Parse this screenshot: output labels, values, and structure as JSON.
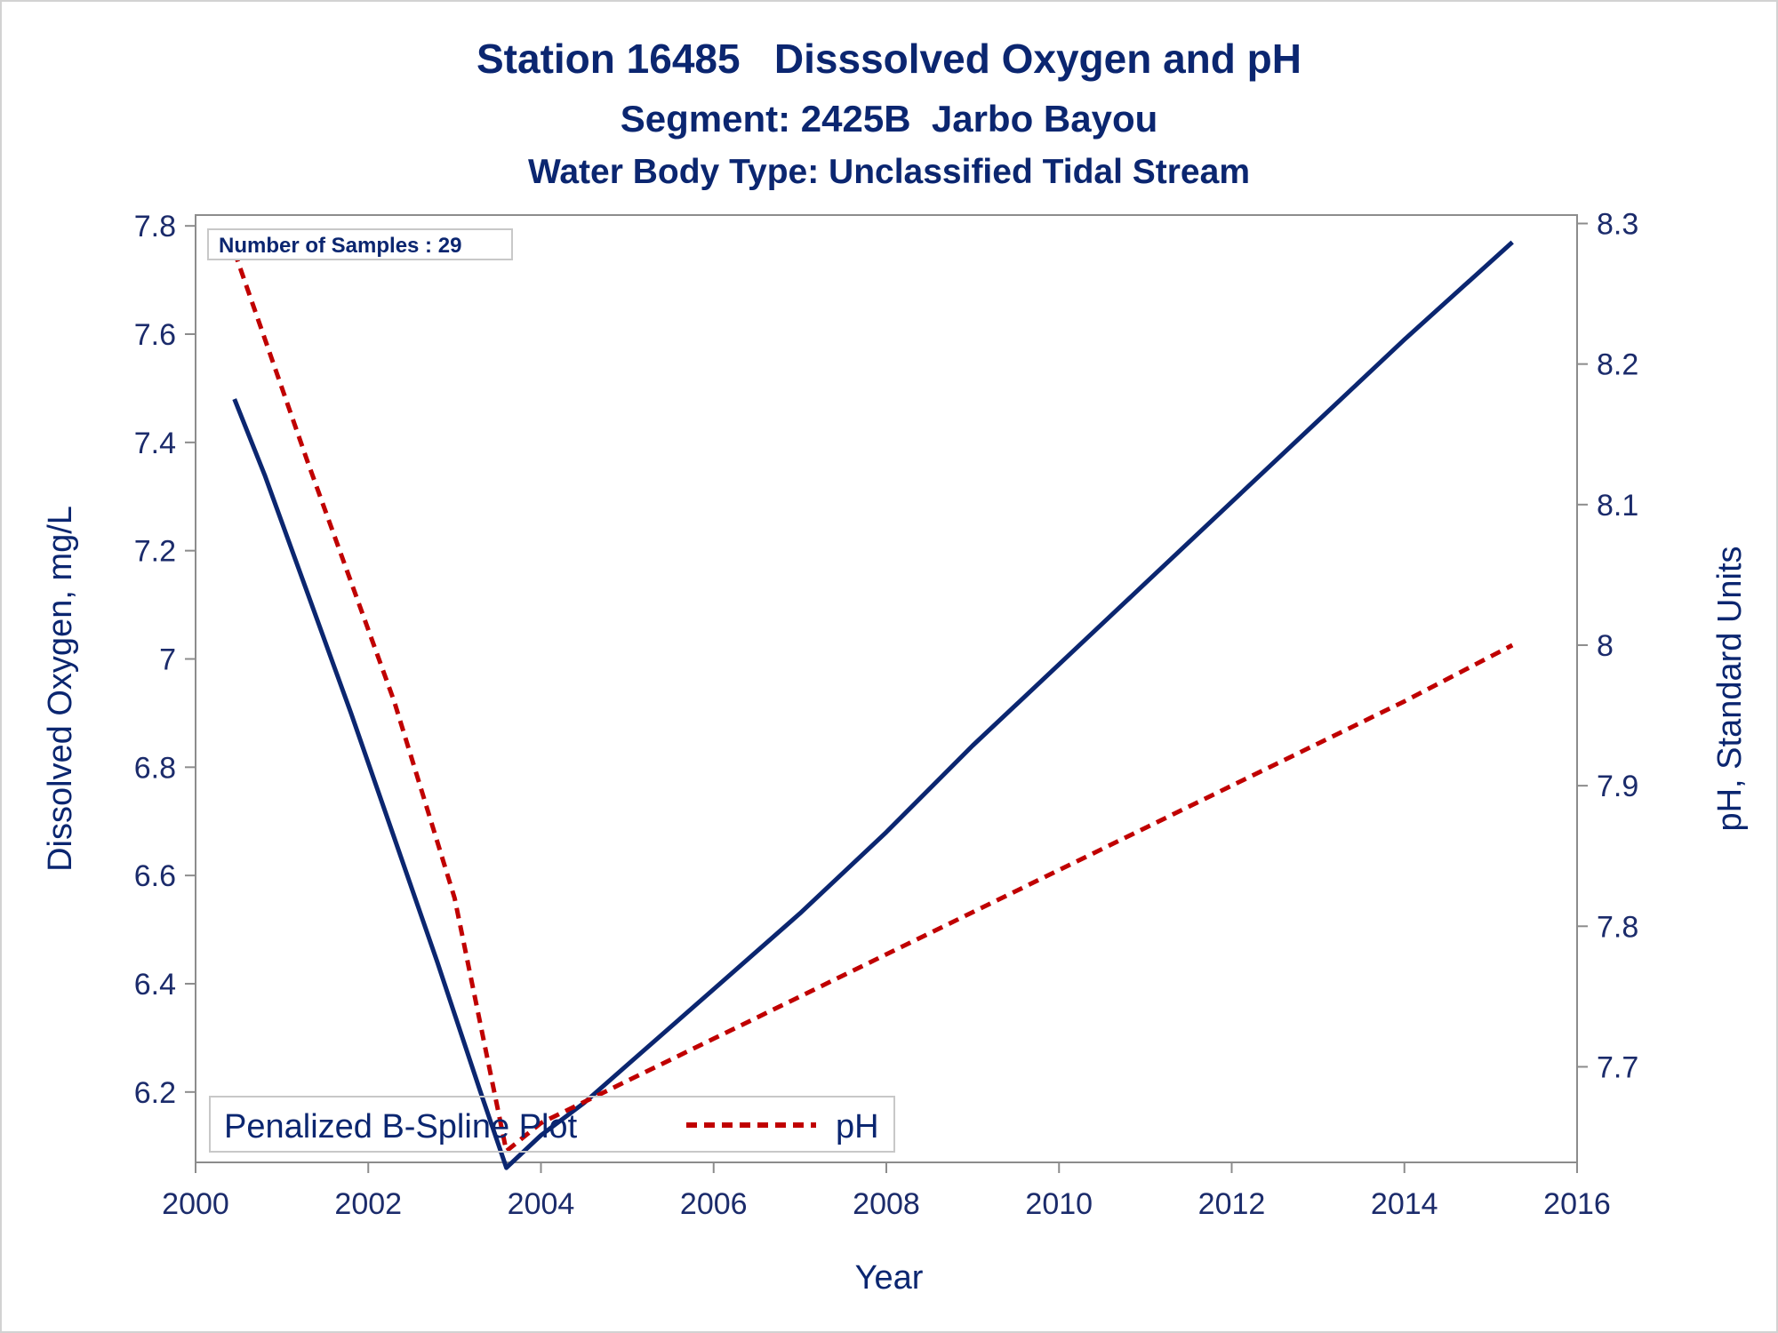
{
  "chart_data": {
    "type": "line",
    "title": "Station 16485   Disssolved Oxygen and pH",
    "subtitle": "Segment: 2425B  Jarbo Bayou",
    "subtitle2": "Water Body Type: Unclassified Tidal Stream",
    "xlabel": "Year",
    "ylabel": "Dissolved Oxygen, mg/L",
    "y2label": "pH, Standard Units",
    "xlim": [
      2000,
      2016
    ],
    "ylim": [
      6.07,
      7.82
    ],
    "y2lim": [
      7.632,
      8.306
    ],
    "x_ticks": [
      2000,
      2002,
      2004,
      2006,
      2008,
      2010,
      2012,
      2014,
      2016
    ],
    "y_ticks": [
      6.2,
      6.4,
      6.6,
      6.8,
      7,
      7.2,
      7.4,
      7.6,
      7.8
    ],
    "y2_ticks": [
      7.7,
      7.8,
      7.9,
      8,
      8.1,
      8.2,
      8.3
    ],
    "inset_label": "Number of Samples : 29",
    "legend": {
      "position": "bottom-left",
      "title": "Penalized B-Spline Plot",
      "items": [
        {
          "name": "pH",
          "color": "#c00000",
          "style": "dashed"
        }
      ]
    },
    "series": [
      {
        "key": "do",
        "axis": "left",
        "color": "#0b2670",
        "style": "solid",
        "x": [
          2000.45,
          2000.8,
          2001.3,
          2001.8,
          2002.3,
          2002.8,
          2003.3,
          2003.6,
          2004.0,
          2004.5,
          2005.0,
          2006.0,
          2007.0,
          2008.0,
          2009.0,
          2010.0,
          2011.0,
          2012.0,
          2013.0,
          2014.0,
          2015.25
        ],
        "y": [
          7.48,
          7.34,
          7.12,
          6.9,
          6.67,
          6.44,
          6.2,
          6.06,
          6.12,
          6.18,
          6.25,
          6.39,
          6.53,
          6.68,
          6.84,
          6.99,
          7.14,
          7.29,
          7.44,
          7.59,
          7.77
        ]
      },
      {
        "key": "ph",
        "name": "pH",
        "axis": "right",
        "color": "#c00000",
        "style": "dashed",
        "x": [
          2000.45,
          2001.3,
          2002.3,
          2003.0,
          2003.6,
          2004.0,
          2005.0,
          2006.0,
          2007.0,
          2008.0,
          2009.0,
          2010.0,
          2011.0,
          2012.0,
          2013.0,
          2014.0,
          2015.25
        ],
        "y": [
          8.28,
          8.13,
          7.96,
          7.82,
          7.64,
          7.66,
          7.69,
          7.72,
          7.75,
          7.78,
          7.81,
          7.84,
          7.87,
          7.9,
          7.93,
          7.96,
          8.0
        ]
      }
    ]
  },
  "colors": {
    "text": "#0b2670",
    "do_line": "#0b2670",
    "ph_line": "#c00000",
    "axis": "#8c8c8c"
  }
}
